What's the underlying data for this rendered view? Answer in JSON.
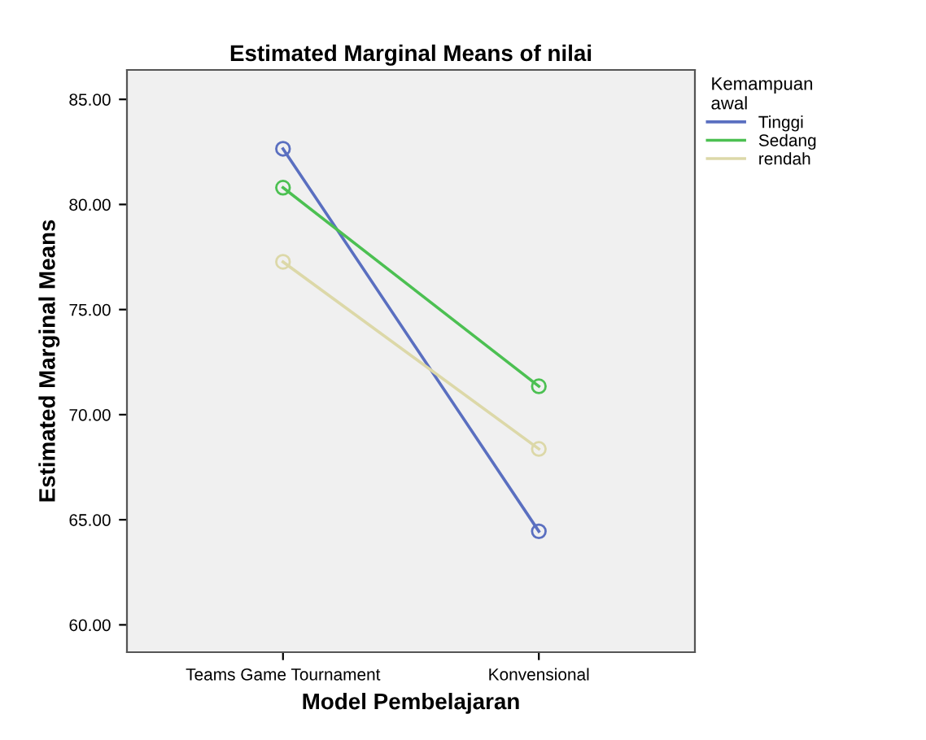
{
  "chart_data": {
    "type": "line",
    "title": "Estimated Marginal Means of nilai",
    "xlabel": "Model Pembelajaran",
    "ylabel": "Estimated Marginal Means",
    "legend_title": "Kemampuan\nawal",
    "categories": [
      "Teams Game Tournament",
      "Konvensional"
    ],
    "series": [
      {
        "name": "Tinggi",
        "color": "#5a6fc0",
        "values": [
          82.65,
          64.45
        ]
      },
      {
        "name": "Sedang",
        "color": "#4cc052",
        "values": [
          80.8,
          71.35
        ]
      },
      {
        "name": "rendah",
        "color": "#dcd8a8",
        "values": [
          77.27,
          68.37
        ]
      }
    ],
    "ylim": [
      58.7,
      86.4
    ],
    "yticks": [
      {
        "value": 60,
        "label": "60.00"
      },
      {
        "value": 65,
        "label": "65.00"
      },
      {
        "value": 70,
        "label": "70.00"
      },
      {
        "value": 75,
        "label": "75.00"
      },
      {
        "value": 80,
        "label": "80.00"
      },
      {
        "value": 85,
        "label": "85.00"
      }
    ],
    "grid": false,
    "legend": "top right",
    "marker": "circle",
    "line_style": "solid"
  }
}
